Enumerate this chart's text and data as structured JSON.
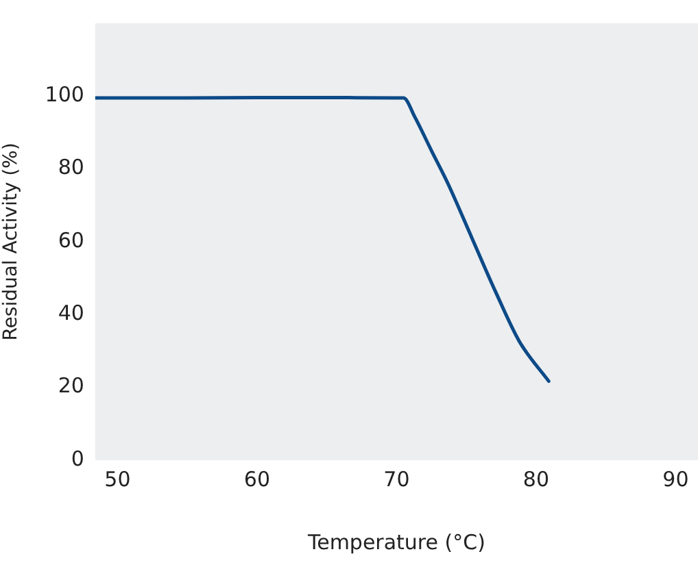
{
  "chart_data": {
    "type": "line",
    "xlabel": "Temperature (°C)",
    "ylabel": "Residual Activity (%)",
    "x": [
      48.4,
      55,
      60,
      65,
      70,
      70.5,
      71.3,
      72.5,
      73.7,
      75.4,
      77.1,
      78.8,
      80.9
    ],
    "series": [
      {
        "color": "#0d4a87",
        "values": [
          99.5,
          99.5,
          99.6,
          99.6,
          99.5,
          99.5,
          94.3,
          85,
          75.8,
          61,
          46.2,
          32.6,
          21.7
        ]
      }
    ],
    "xlim": [
      48.4,
      91.6
    ],
    "xticks": [
      50,
      60,
      70,
      80,
      90
    ],
    "ylim": [
      0,
      120
    ],
    "yticks": [
      0,
      20,
      40,
      60,
      80,
      100
    ],
    "grid": false,
    "legend": false,
    "marker": "none",
    "line_style": "solid"
  }
}
